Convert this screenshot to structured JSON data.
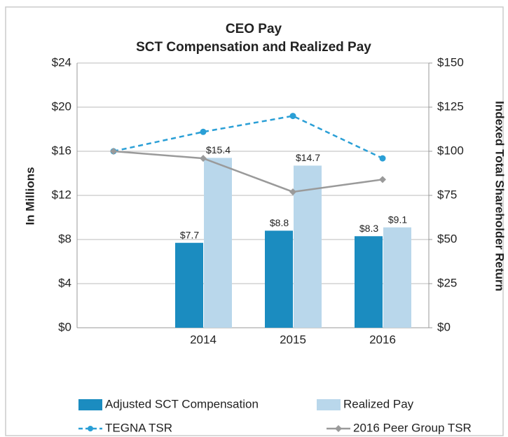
{
  "chart_data": {
    "type": "bar",
    "title": "CEO Pay",
    "subtitle": "SCT Compensation and Realized Pay",
    "y_label": "In Millions",
    "y2_label": "Indexed Total Shareholder Return",
    "categories": [
      null,
      "2014",
      "2015",
      "2016"
    ],
    "series": [
      {
        "name": "Adjusted SCT Compensation",
        "type": "bar",
        "color": "#1b8cc0",
        "values": [
          null,
          7.7,
          8.8,
          8.3
        ],
        "value_labels": [
          null,
          "$7.7",
          "$8.8",
          "$8.3"
        ]
      },
      {
        "name": "Realized Pay",
        "type": "bar",
        "color": "#b9d7eb",
        "values": [
          null,
          15.4,
          14.7,
          9.1
        ],
        "value_labels": [
          null,
          "$15.4",
          "$14.7",
          "$9.1"
        ]
      },
      {
        "name": "TEGNA TSR",
        "type": "line",
        "axis": "y2",
        "color": "#2a9fd6",
        "dashed": true,
        "marker": "circle",
        "values": [
          100,
          111,
          120,
          96
        ]
      },
      {
        "name": "2016 Peer Group TSR",
        "type": "line",
        "axis": "y2",
        "color": "#9a9a9a",
        "dashed": false,
        "marker": "diamond",
        "values": [
          100,
          96,
          77,
          84
        ]
      }
    ],
    "ylim": [
      0,
      24
    ],
    "yticks": [
      {
        "value": 0,
        "label": "$0"
      },
      {
        "value": 4,
        "label": "$4"
      },
      {
        "value": 8,
        "label": "$8"
      },
      {
        "value": 12,
        "label": "$12"
      },
      {
        "value": 16,
        "label": "$16"
      },
      {
        "value": 20,
        "label": "$20"
      },
      {
        "value": 24,
        "label": "$24"
      }
    ],
    "y2lim": [
      0,
      150
    ],
    "y2ticks": [
      {
        "value": 0,
        "label": "$0"
      },
      {
        "value": 25,
        "label": "$25"
      },
      {
        "value": 50,
        "label": "$50"
      },
      {
        "value": 75,
        "label": "$75"
      },
      {
        "value": 100,
        "label": "$100"
      },
      {
        "value": 125,
        "label": "$125"
      },
      {
        "value": 150,
        "label": "$150"
      }
    ],
    "grid": true,
    "legend": "bottom"
  }
}
